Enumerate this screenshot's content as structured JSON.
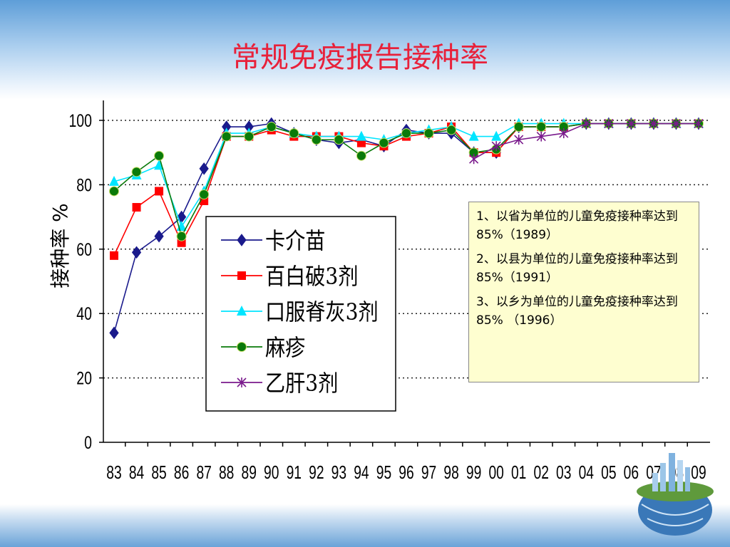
{
  "title": "常规免疫报告接种率",
  "colors": {
    "title": "#e8213a",
    "卡介苗": "#1a1a8c",
    "百白破3剂": "#ff0000",
    "口服脊灰3剂": "#00e5ff",
    "麻疹": "#0a7a0a",
    "乙肝3剂": "#7a1a8c",
    "note_bg": "#fefed0"
  },
  "notes": [
    "1、以省为单位的儿童免疫接种率达到85%（1989）",
    "2、以县为单位的儿童免疫接种率达到85%（1991）",
    "3、以乡为单位的儿童免疫接种率达到85% （1996）"
  ],
  "chart_data": {
    "type": "line",
    "ylabel": "接种率 %",
    "xlabel": "",
    "ylim": [
      0,
      100
    ],
    "yticks": [
      0,
      20,
      40,
      60,
      80,
      100
    ],
    "grid": "horizontal dotted",
    "legend_position": "center-left",
    "categories": [
      "83",
      "84",
      "85",
      "86",
      "87",
      "88",
      "89",
      "90",
      "91",
      "92",
      "93",
      "94",
      "95",
      "96",
      "97",
      "98",
      "99",
      "00",
      "01",
      "02",
      "03",
      "04",
      "05",
      "06",
      "07",
      "08",
      "09"
    ],
    "series": [
      {
        "name": "卡介苗",
        "marker": "diamond",
        "values": [
          34,
          59,
          64,
          70,
          85,
          98,
          98,
          99,
          96,
          94,
          93,
          94,
          92,
          97,
          96,
          96,
          90,
          90,
          98,
          98,
          98,
          99,
          99,
          99,
          99,
          99,
          99
        ]
      },
      {
        "name": "百白破3剂",
        "marker": "square",
        "values": [
          58,
          73,
          78,
          62,
          75,
          95,
          95,
          97,
          95,
          95,
          95,
          93,
          92,
          95,
          96,
          98,
          90,
          90,
          98,
          98,
          98,
          99,
          99,
          99,
          99,
          99,
          99
        ]
      },
      {
        "name": "口服脊灰3剂",
        "marker": "triangle",
        "values": [
          81,
          83,
          86,
          67,
          78,
          96,
          96,
          98,
          96,
          95,
          95,
          95,
          94,
          96,
          97,
          98,
          95,
          95,
          99,
          99,
          99,
          99,
          99,
          99,
          99,
          99,
          99
        ]
      },
      {
        "name": "麻疹",
        "marker": "circle",
        "values": [
          78,
          84,
          89,
          64,
          77,
          95,
          95,
          98,
          96,
          94,
          94,
          89,
          93,
          96,
          96,
          97,
          90,
          91,
          98,
          98,
          98,
          99,
          99,
          99,
          99,
          99,
          99
        ]
      },
      {
        "name": "乙肝3剂",
        "marker": "asterisk",
        "values": [
          null,
          null,
          null,
          null,
          null,
          null,
          null,
          null,
          null,
          null,
          null,
          null,
          null,
          null,
          null,
          null,
          88,
          92,
          94,
          95,
          96,
          99,
          99,
          99,
          99,
          99,
          99
        ]
      }
    ]
  }
}
